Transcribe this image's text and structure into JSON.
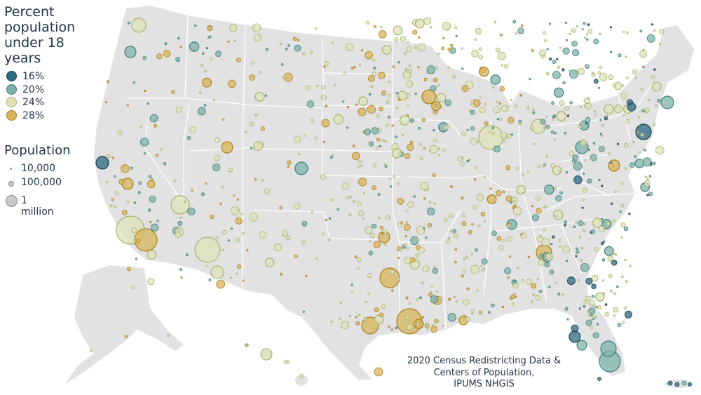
{
  "legend": {
    "percent_title": "Percent population under 18 years",
    "percent_items": [
      {
        "label": "16%",
        "fill": "#2e6a80",
        "stroke": "#173e52"
      },
      {
        "label": "20%",
        "fill": "#7fb1aa",
        "stroke": "#3d7f78"
      },
      {
        "label": "24%",
        "fill": "#dfe2b9",
        "stroke": "#a9b06e"
      },
      {
        "label": "28%",
        "fill": "#d8b45a",
        "stroke": "#a97d1f"
      }
    ],
    "population_title": "Population",
    "population_items": [
      {
        "label": "10,000"
      },
      {
        "label": "100,000"
      },
      {
        "label": "1 million"
      }
    ]
  },
  "credit": {
    "line1": "2020 Census Redistricting Data &",
    "line2": "Centers of Population,",
    "line3": "IPUMS NHGIS"
  },
  "colors": {
    "land": "#e2e2e2",
    "borders": "#ffffff",
    "text": "#1f3346"
  }
}
